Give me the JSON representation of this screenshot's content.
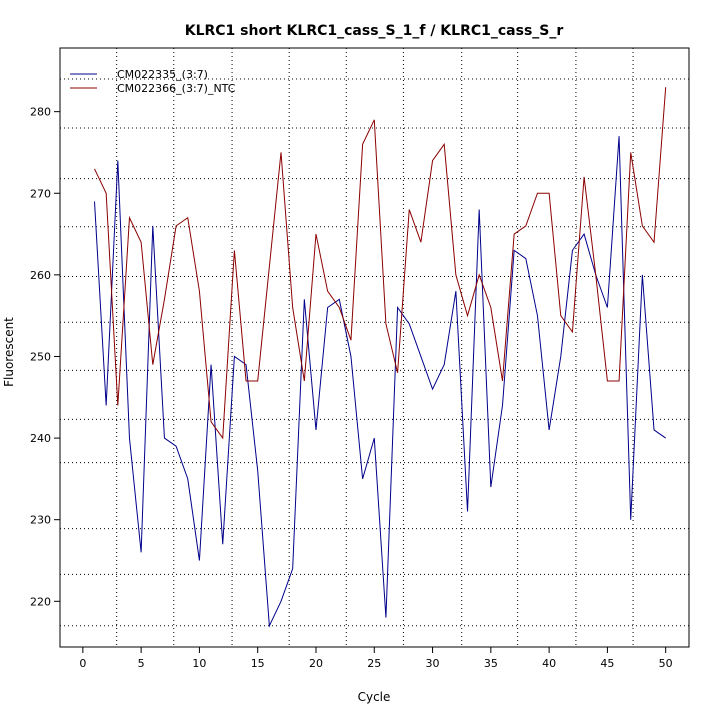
{
  "chart_data": {
    "type": "line",
    "title": "KLRC1 short KLRC1_cass_S_1_f / KLRC1_cass_S_r",
    "xlabel": "Cycle",
    "ylabel": "Fluorescent",
    "xlim": [
      -1.96,
      52.0
    ],
    "ylim": [
      214.4,
      287.8
    ],
    "x_ticks": [
      0,
      5,
      10,
      15,
      20,
      25,
      30,
      35,
      40,
      45,
      50
    ],
    "y_ticks": [
      220,
      230,
      240,
      250,
      260,
      270,
      280
    ],
    "x_gridlines": [
      2.9,
      7.8,
      12.8,
      17.7,
      22.6,
      27.5,
      32.5,
      37.3,
      42.3,
      47.2
    ],
    "y_gridlines": [
      217.0,
      223.3,
      228.9,
      237.0,
      242.3,
      248.3,
      254.2,
      259.8,
      265.9,
      271.8,
      278.0,
      284.0
    ],
    "grid": true,
    "legend_position": "top-left",
    "series": [
      {
        "name": "CM022335_(3:7)",
        "color": "#00008b",
        "x": [
          1,
          2,
          3,
          4,
          5,
          6,
          7,
          8,
          9,
          10,
          11,
          12,
          13,
          14,
          15,
          16,
          17,
          18,
          19,
          20,
          21,
          22,
          23,
          24,
          25,
          26,
          27,
          28,
          29,
          30,
          31,
          32,
          33,
          34,
          35,
          36,
          37,
          38,
          39,
          40,
          41,
          42,
          43,
          44,
          45,
          46,
          47,
          48,
          49,
          50
        ],
        "values": [
          269,
          244,
          274,
          240,
          226,
          266,
          240,
          239,
          235,
          225,
          249,
          227,
          250,
          249,
          236,
          217,
          220,
          224,
          257,
          241,
          256,
          257,
          250,
          235,
          240,
          218,
          256,
          254,
          250,
          246,
          249,
          258,
          231,
          268,
          234,
          244,
          263,
          262,
          255,
          241,
          250,
          263,
          265,
          260,
          256,
          277,
          230,
          260,
          241,
          240
        ]
      },
      {
        "name": "CM022366_(3:7)_NTC",
        "color": "#8b0000",
        "x": [
          1,
          2,
          3,
          4,
          5,
          6,
          7,
          8,
          9,
          10,
          11,
          12,
          13,
          14,
          15,
          16,
          17,
          18,
          19,
          20,
          21,
          22,
          23,
          24,
          25,
          26,
          27,
          28,
          29,
          30,
          31,
          32,
          33,
          34,
          35,
          36,
          37,
          38,
          39,
          40,
          41,
          42,
          43,
          44,
          45,
          46,
          47,
          48,
          49,
          50
        ],
        "values": [
          273,
          270,
          244,
          267,
          264,
          249,
          257,
          266,
          267,
          258,
          242,
          240,
          263,
          247,
          247,
          261,
          275,
          256,
          247,
          265,
          258,
          256,
          252,
          276,
          279,
          254,
          248,
          268,
          264,
          274,
          276,
          260,
          255,
          260,
          256,
          247,
          265,
          266,
          270,
          270,
          255,
          253,
          272,
          260,
          247,
          247,
          275,
          266,
          264,
          283
        ]
      }
    ]
  }
}
